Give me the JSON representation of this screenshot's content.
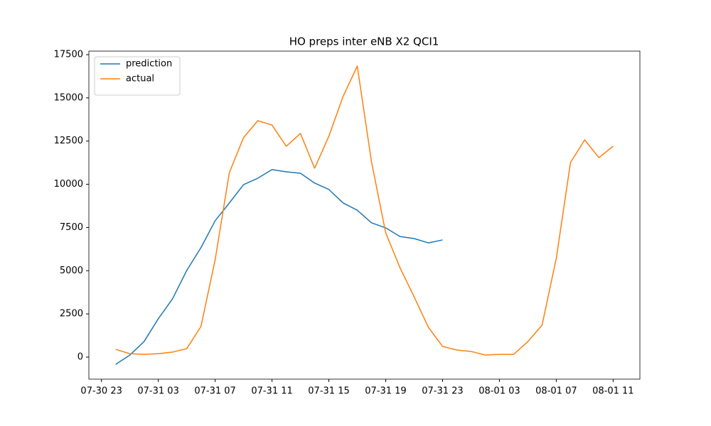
{
  "chart_data": {
    "type": "line",
    "title": "HO preps inter eNB X2 QCI1",
    "x": [
      "07-31 00",
      "07-31 01",
      "07-31 02",
      "07-31 03",
      "07-31 04",
      "07-31 05",
      "07-31 06",
      "07-31 07",
      "07-31 08",
      "07-31 09",
      "07-31 10",
      "07-31 11",
      "07-31 12",
      "07-31 13",
      "07-31 14",
      "07-31 15",
      "07-31 16",
      "07-31 17",
      "07-31 18",
      "07-31 19",
      "07-31 20",
      "07-31 21",
      "07-31 22",
      "07-31 23",
      "08-01 00",
      "08-01 01",
      "08-01 02",
      "08-01 03",
      "08-01 04",
      "08-01 05",
      "08-01 06",
      "08-01 07",
      "08-01 08",
      "08-01 09",
      "08-01 10",
      "08-01 11"
    ],
    "series": [
      {
        "name": "prediction",
        "color": "#1f77b4",
        "values": [
          -420,
          120,
          900,
          2220,
          3370,
          5010,
          6330,
          7890,
          8920,
          9980,
          10350,
          10850,
          10720,
          10640,
          10070,
          9700,
          8920,
          8500,
          7770,
          7480,
          6980,
          6860,
          6610,
          6780,
          null,
          null,
          null,
          null,
          null,
          null,
          null,
          null,
          null,
          null,
          null,
          null
        ]
      },
      {
        "name": "actual",
        "color": "#ff7f0e",
        "values": [
          450,
          200,
          160,
          200,
          290,
          490,
          1770,
          5630,
          10680,
          12700,
          13680,
          13430,
          12200,
          12940,
          10930,
          12780,
          15080,
          16840,
          11300,
          7190,
          5180,
          3490,
          1730,
          620,
          410,
          330,
          120,
          160,
          160,
          900,
          1850,
          5710,
          11260,
          12570,
          11540,
          12200
        ]
      }
    ],
    "xlim": [
      "07-30 22:07",
      "08-01 12:53"
    ],
    "xticks": [
      "07-30 23",
      "07-31 03",
      "07-31 07",
      "07-31 11",
      "07-31 15",
      "07-31 19",
      "07-31 23",
      "08-01 03",
      "08-01 07",
      "08-01 11"
    ],
    "ylim": [
      -1274,
      17705
    ],
    "yticks": [
      0,
      2500,
      5000,
      7500,
      10000,
      12500,
      15000,
      17500
    ],
    "legend": "upper left"
  }
}
